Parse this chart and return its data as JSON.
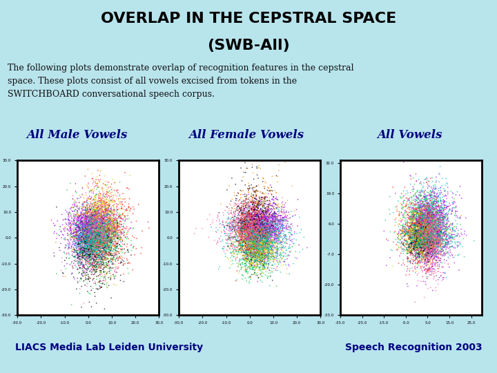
{
  "title_line1": "OVERLAP IN THE CEPSTRAL SPACE",
  "title_line2": "(SWB-All)",
  "description": "The following plots demonstrate overlap of recognition features in the cepstral\nspace. These plots consist of all vowels excised from tokens in the\nSWITCHBOARD conversational speech corpus.",
  "plot_titles": [
    "All Male Vowels",
    "All Female Vowels",
    "All Vowels"
  ],
  "footer_left": "LIACS Media Lab Leiden University",
  "footer_right": "Speech Recognition 2003",
  "bg_color": "#b8e4ec",
  "title_color": "#000000",
  "desc_color": "#111111",
  "plot_title_color": "#000080",
  "footer_color": "#000080",
  "accent_line_color": "#00c8d8",
  "plot1_xlim": [
    -30.0,
    30.0
  ],
  "plot1_ylim": [
    -30.0,
    30.0
  ],
  "plot2_xlim": [
    -30.0,
    30.0
  ],
  "plot2_ylim": [
    -30.0,
    30.0
  ],
  "plot3_xlim": [
    -35.0,
    30.0
  ],
  "plot3_ylim": [
    -33.0,
    33.0
  ],
  "cluster_colors": [
    "#ff8800",
    "#8800cc",
    "#00aaff",
    "#00cc44",
    "#ff2200",
    "#aa00ff",
    "#000000",
    "#ffdd00",
    "#00ddcc",
    "#ff66aa"
  ],
  "n_points_per_cluster": 600,
  "seed": 7
}
